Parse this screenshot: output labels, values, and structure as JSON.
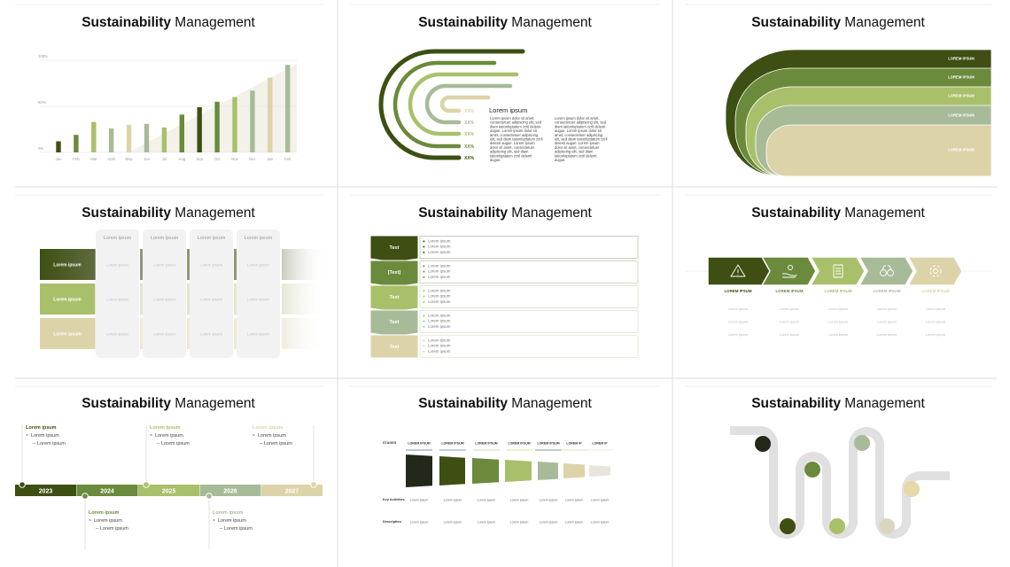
{
  "title": {
    "bold": "Sustainability",
    "regular": " Management"
  },
  "palette": {
    "darkest": "#23291a",
    "dark": "#3d4f12",
    "mid": "#6b8a3c",
    "light": "#a9c06a",
    "sage": "#a8bb98",
    "beige": "#ddd3a8",
    "pale": "#e8e6dc"
  },
  "chart_data": {
    "type": "bar",
    "categories": [
      "Jan",
      "Feb",
      "Mar",
      "April",
      "May",
      "Jun",
      "Jul",
      "Aug",
      "Sep",
      "Oct",
      "Nov",
      "Dec",
      "Jan",
      "Feb"
    ],
    "values": [
      12,
      19,
      33,
      26,
      30,
      31,
      27,
      41,
      49,
      55,
      60,
      67,
      81,
      95
    ],
    "colors": [
      "#3d4f12",
      "#6b8a3c",
      "#a9c06a",
      "#a8bb98",
      "#ddd3a8",
      "#a8bb98",
      "#a9c06a",
      "#6b8a3c",
      "#3d4f12",
      "#6b8a3c",
      "#a9c06a",
      "#a8bb98",
      "#ddd3a8",
      "#a8bb98"
    ],
    "ytick_labels": [
      "0%",
      "50%",
      "100%"
    ],
    "ylim": [
      0,
      100
    ],
    "grid": true,
    "title": "",
    "xlabel": "",
    "ylabel": ""
  },
  "arcs": {
    "values": [
      "XX%",
      "XX%",
      "XX%",
      "XX%",
      "XX%"
    ],
    "heading": "Lorem ipsum",
    "columns": [
      [
        "Lorem ipsum dolor sit amet,",
        "consectetuer adipiscing elit, sed",
        "diam tationluptatum zzril delenit",
        "augue. Lorem ipsum dolor sit",
        "amet, consectetuer adipiscing",
        "elit, sed diam tationluptatum zzril",
        "delenit augue. Lorem ipsum",
        "dolor sit amet, consectetuer",
        "adipiscing elit, sed diam",
        "tationluptatum zzril delenit",
        "augue."
      ],
      [
        "Lorem ipsum dolor sit amet,",
        "consectetuer adipiscing elit, sed",
        "diam tationluptatum zzril delenit",
        "augue. Lorem ipsum dolor sit",
        "amet, consectetuer adipiscing",
        "elit, sed diam tationluptatum zzril",
        "delenit augue. Lorem ipsum",
        "dolor sit amet, consectetuer",
        "adipiscing elit, sed diam",
        "tationluptatum zzril delenit",
        "augue."
      ]
    ]
  },
  "bands": {
    "labels": [
      "LOREM IPSUM",
      "LOREM IPSUM",
      "LOREM IPSUM",
      "LOREM IPSUM",
      "LOREM IPSUM"
    ]
  },
  "matrix": {
    "columns": [
      "Lorem ipsum",
      "Lorem ipsum",
      "Lorem ipsum",
      "Lorem ipsum"
    ],
    "rows": [
      {
        "label": "Lorem ipsum",
        "cells": [
          "Lorem ipsum",
          "Lorem ipsum",
          "Lorem ipsum",
          "Lorem ipsum"
        ]
      },
      {
        "label": "Lorem ipsum",
        "cells": [
          "Lorem ipsum",
          "Lorem ipsum",
          "Lorem ipsum",
          "Lorem ipsum"
        ]
      },
      {
        "label": "Lorem ipsum",
        "cells": [
          "Lorem ipsum",
          "Lorem ipsum",
          "Lorem ipsum",
          "Lorem ipsum"
        ]
      }
    ]
  },
  "steps": {
    "rows": [
      {
        "label": "Text",
        "items": [
          "Lorem ipsum",
          "Lorem ipsum",
          "Lorem ipsum"
        ]
      },
      {
        "label": "[Text]",
        "items": [
          "Lorem ipsum",
          "Lorem ipsum",
          "Lorem ipsum"
        ]
      },
      {
        "label": "Text",
        "items": [
          "Lorem ipsum",
          "Lorem ipsum",
          "Lorem ipsum"
        ]
      },
      {
        "label": "Text",
        "items": [
          "Lorem ipsum",
          "Lorem ipsum",
          "Lorem ipsum"
        ]
      },
      {
        "label": "Text",
        "items": [
          "Lorem ipsum",
          "Lorem ipsum",
          "Lorem ipsum"
        ]
      }
    ]
  },
  "process": {
    "steps": [
      {
        "icon": "warning-icon",
        "label": "LOREM IPSUM",
        "items": [
          "Lorem ipsum",
          "Lorem ipsum",
          "Lorem ipsum"
        ]
      },
      {
        "icon": "hand-lightbulb-icon",
        "label": "LOREM IPSUM",
        "items": [
          "Lorem ipsum",
          "Lorem ipsum",
          "Lorem ipsum"
        ]
      },
      {
        "icon": "checklist-icon",
        "label": "LOREM IPSUM",
        "items": [
          "Lorem ipsum",
          "Lorem ipsum",
          "Lorem ipsum"
        ]
      },
      {
        "icon": "binoculars-icon",
        "label": "LOREM IPSUM",
        "items": [
          "Lorem ipsum",
          "Lorem ipsum",
          "Lorem ipsum"
        ]
      },
      {
        "icon": "cycle-icon",
        "label": "LOREM IPSUM",
        "items": [
          "Lorem ipsum",
          "Lorem ipsum",
          "Lorem ipsum"
        ]
      }
    ]
  },
  "timeline": {
    "years": [
      "2023",
      "2024",
      "2025",
      "2026",
      "2027"
    ],
    "notes": [
      {
        "heading": "Lorem ipsum",
        "item": "Lorem ipsum",
        "subitem": "Lorem ipsum"
      },
      {
        "heading": "Lorem ipsum",
        "item": "Lorem ipsum",
        "subitem": "Lorem ipsum"
      },
      {
        "heading": "Lorem ipsum",
        "item": "Lorem ipsum",
        "subitem": "Lorem ipsum"
      },
      {
        "heading": "Lorem ipsum",
        "item": "Lorem ipsum",
        "subitem": "Lorem ipsum"
      },
      {
        "heading": "Lorem ipsum",
        "item": "Lorem ipsum",
        "subitem": "Lorem ipsum"
      }
    ]
  },
  "stages": {
    "row_header": "STAGES",
    "columns": [
      "LOREM IPSUM",
      "LOREM IPSUM",
      "LOREM IPSUM",
      "LOREM IPSUM",
      "LOREM IPSUM",
      "LOREM IP",
      "LOREM IP"
    ],
    "rows": [
      {
        "label": "Key Activities",
        "cells": [
          "Lorem ipsum",
          "Lorem ipsum",
          "Lorem ipsum",
          "Lorem ipsum",
          "Lorem ipsum",
          "Lorem ipsum",
          "Lorem ipsum"
        ]
      },
      {
        "label": "Description",
        "cells": [
          "Lorem ipsum",
          "Lorem ipsum",
          "Lorem ipsum",
          "Lorem ipsum",
          "Lorem ipsum",
          "Lorem ipsum",
          "Lorem ipsum"
        ]
      }
    ]
  }
}
